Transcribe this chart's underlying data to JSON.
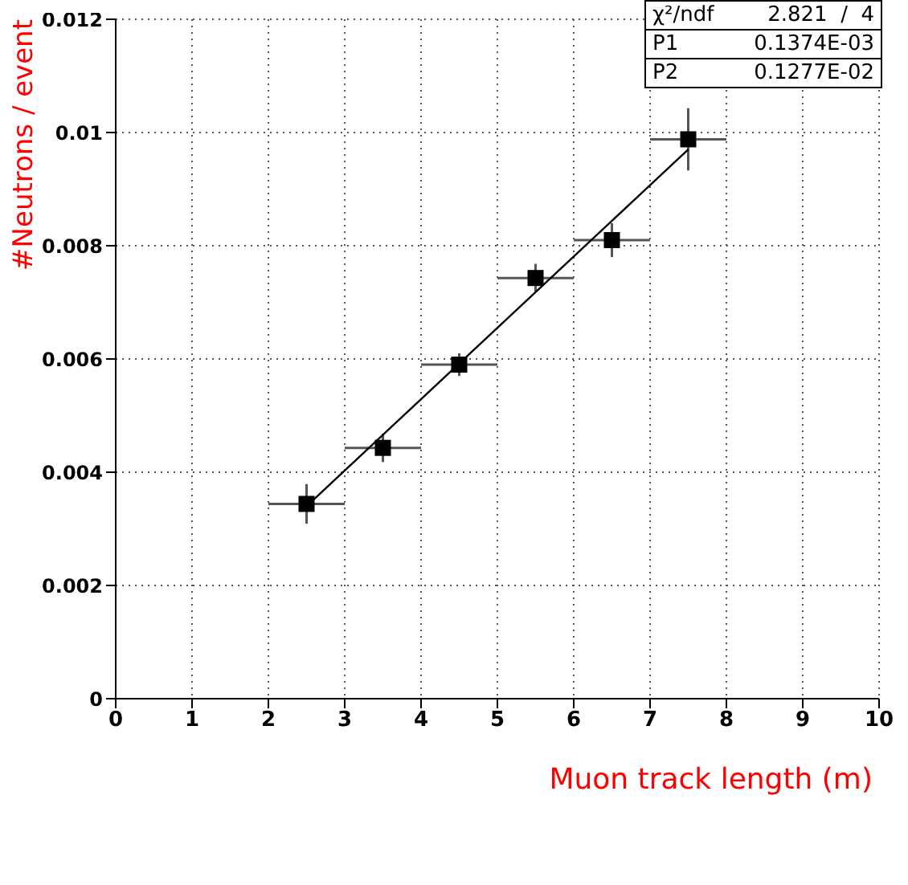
{
  "chart_data": {
    "type": "scatter",
    "xlabel": "Muon track length (m)",
    "ylabel": "#Neutrons / event",
    "xlim": [
      0,
      10
    ],
    "xticks": [
      0,
      1,
      2,
      3,
      4,
      5,
      6,
      7,
      8,
      9,
      10
    ],
    "ylim": [
      0,
      0.012
    ],
    "yticks": [
      0,
      0.002,
      0.004,
      0.006,
      0.008,
      0.01,
      0.012
    ],
    "grid": true,
    "marker": "square",
    "annotations": [
      "χ²/ndf",
      "2.821  /  4",
      "P1",
      "0.1374E-03",
      "P2",
      "0.1277E-02"
    ],
    "series": [
      {
        "color": "#000000",
        "x": [
          2.5,
          3.5,
          4.5,
          5.5,
          6.5,
          7.5
        ],
        "values": [
          0.00344,
          0.00443,
          0.0059,
          0.00743,
          0.0081,
          0.00988
        ],
        "errors": [
          0.00035,
          0.00025,
          0.0002,
          0.00025,
          0.0003,
          0.00055
        ],
        "xerrors": [
          0.5,
          0.5,
          0.5,
          0.5,
          0.5,
          0.5
        ]
      },
      {
        "type": "line",
        "color": "#000000",
        "x": [
          2.5,
          7.5
        ],
        "values": [
          0.0034,
          0.0097
        ],
        "line_style": "solid",
        "marker": "none"
      }
    ]
  }
}
